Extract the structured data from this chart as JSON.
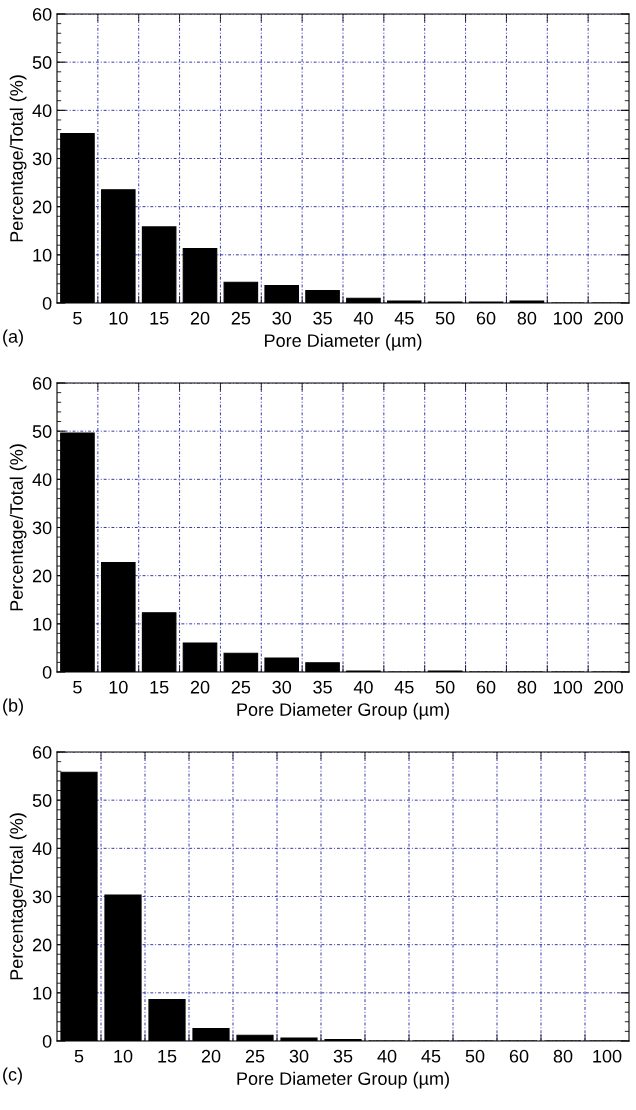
{
  "chart_data": [
    {
      "type": "bar",
      "categories": [
        "5",
        "10",
        "15",
        "20",
        "25",
        "30",
        "35",
        "40",
        "45",
        "50",
        "60",
        "80",
        "100",
        "200"
      ],
      "values": [
        35.2,
        23.5,
        15.8,
        11.3,
        4.3,
        3.6,
        2.6,
        1.0,
        0.4,
        0.2,
        0.2,
        0.4,
        0,
        0
      ],
      "color": "#000000",
      "xlabel": "Pore Diameter (µm)",
      "ylabel": "Percentage/Total (%)",
      "ylim": [
        0,
        60
      ],
      "yticks": [
        0,
        10,
        20,
        30,
        40,
        50,
        60
      ],
      "grid": true,
      "annotations": [
        "(a)"
      ]
    },
    {
      "type": "bar",
      "categories": [
        "5",
        "10",
        "15",
        "20",
        "25",
        "30",
        "35",
        "40",
        "45",
        "50",
        "60",
        "80",
        "100",
        "200"
      ],
      "values": [
        49.6,
        22.7,
        12.3,
        6.0,
        3.9,
        2.9,
        1.9,
        0.2,
        0,
        0.2,
        0,
        0,
        0,
        0
      ],
      "color": "#000000",
      "xlabel": "Pore Diameter Group (µm)",
      "ylabel": "Percentage/Total (%)",
      "ylim": [
        0,
        60
      ],
      "yticks": [
        0,
        10,
        20,
        30,
        40,
        50,
        60
      ],
      "grid": true,
      "annotations": [
        "(b)"
      ]
    },
    {
      "type": "bar",
      "categories": [
        "5",
        "10",
        "15",
        "20",
        "25",
        "30",
        "35",
        "40",
        "45",
        "50",
        "60",
        "80",
        "100"
      ],
      "values": [
        55.8,
        30.3,
        8.6,
        2.6,
        1.2,
        0.6,
        0.3,
        0,
        0,
        0,
        0,
        0,
        0
      ],
      "color": "#000000",
      "xlabel": "Pore Diameter Group (µm)",
      "ylabel": "Percentage/Total (%)",
      "ylim": [
        0,
        60
      ],
      "yticks": [
        0,
        10,
        20,
        30,
        40,
        50,
        60
      ],
      "grid": true,
      "annotations": [
        "(c)"
      ]
    }
  ]
}
